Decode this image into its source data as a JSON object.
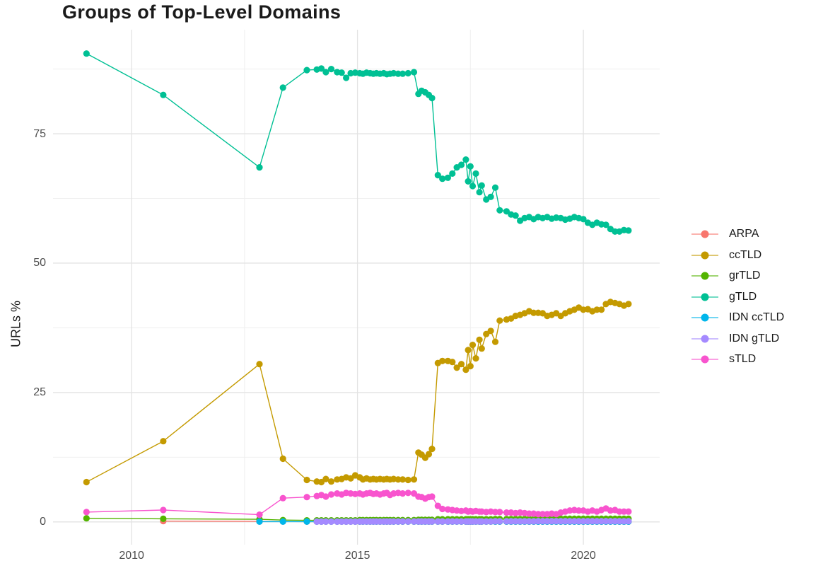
{
  "page": {
    "background": "#ffffff"
  },
  "chart_data": {
    "type": "line",
    "title": "Groups of Top-Level Domains",
    "xlabel": "",
    "ylabel": "URLs %",
    "legend_position": "right",
    "grid": true,
    "x_ticks": [
      2010,
      2015,
      2020
    ],
    "x_tick_labels": [
      "2010",
      "2015",
      "2020"
    ],
    "x_minor_ticks": [
      2012.5,
      2017.5
    ],
    "y_ticks": [
      0,
      25,
      50,
      75
    ],
    "y_tick_labels": [
      "0",
      "25",
      "50",
      "75"
    ],
    "y_minor_ticks": [
      12.5,
      37.5,
      62.5,
      87.5
    ],
    "xlim": [
      2008.26,
      2021.69
    ],
    "ylim": [
      -4.4,
      95.1
    ],
    "x": [
      2009.0,
      2010.7,
      2012.83,
      2013.35,
      2013.88,
      2014.1,
      2014.2,
      2014.3,
      2014.42,
      2014.55,
      2014.65,
      2014.75,
      2014.85,
      2014.95,
      2015.05,
      2015.12,
      2015.2,
      2015.28,
      2015.35,
      2015.42,
      2015.5,
      2015.58,
      2015.65,
      2015.72,
      2015.8,
      2015.9,
      2016.0,
      2016.12,
      2016.25,
      2016.35,
      2016.42,
      2016.5,
      2016.58,
      2016.65,
      2016.78,
      2016.88,
      2017.0,
      2017.1,
      2017.2,
      2017.3,
      2017.4,
      2017.45,
      2017.5,
      2017.55,
      2017.62,
      2017.7,
      2017.75,
      2017.85,
      2017.95,
      2018.05,
      2018.15,
      2018.3,
      2018.4,
      2018.5,
      2018.6,
      2018.7,
      2018.8,
      2018.9,
      2019.0,
      2019.1,
      2019.2,
      2019.3,
      2019.4,
      2019.5,
      2019.6,
      2019.7,
      2019.8,
      2019.9,
      2020.0,
      2020.1,
      2020.2,
      2020.3,
      2020.4,
      2020.5,
      2020.6,
      2020.7,
      2020.8,
      2020.9,
      2021.0
    ],
    "series": [
      {
        "name": "ARPA",
        "color": "#F8766D",
        "values": [
          null,
          0.15,
          0.1,
          0.08,
          0.05,
          0.05,
          0.05,
          0.05,
          0.05,
          0.05,
          0.05,
          0.05,
          0.05,
          0.05,
          0.05,
          0.05,
          0.05,
          0.05,
          0.05,
          0.05,
          0.05,
          0.05,
          0.05,
          0.05,
          0.05,
          0.05,
          0.05,
          0.05,
          0.05,
          0.05,
          0.05,
          0.05,
          0.05,
          0.05,
          0.05,
          0.05,
          0.05,
          0.05,
          0.05,
          0.05,
          0.05,
          0.05,
          0.05,
          0.05,
          0.05,
          0.05,
          0.05,
          0.05,
          0.05,
          0.05,
          0.05,
          0.05,
          0.05,
          0.05,
          0.05,
          0.05,
          0.05,
          0.05,
          0.05,
          0.05,
          0.05,
          0.05,
          0.05,
          0.05,
          0.05,
          0.05,
          0.05,
          0.05,
          0.05,
          0.05,
          0.05,
          0.05,
          0.05,
          0.05,
          0.05,
          0.05,
          0.05,
          0.05,
          0.05
        ]
      },
      {
        "name": "ccTLD",
        "color": "#C49A00",
        "values": [
          7.7,
          15.6,
          30.5,
          12.2,
          8.1,
          7.8,
          7.7,
          8.3,
          7.8,
          8.2,
          8.3,
          8.6,
          8.4,
          9.0,
          8.6,
          8.2,
          8.4,
          8.2,
          8.3,
          8.2,
          8.3,
          8.2,
          8.3,
          8.2,
          8.3,
          8.2,
          8.2,
          8.1,
          8.2,
          13.4,
          13.0,
          12.4,
          13.1,
          14.1,
          30.7,
          31.1,
          31.1,
          30.9,
          29.8,
          30.5,
          29.4,
          33.2,
          30.1,
          34.2,
          31.6,
          35.2,
          33.5,
          36.3,
          36.9,
          34.8,
          38.9,
          39.1,
          39.3,
          39.8,
          40.0,
          40.3,
          40.7,
          40.4,
          40.4,
          40.3,
          39.8,
          40.0,
          40.3,
          39.8,
          40.3,
          40.7,
          41.0,
          41.4,
          41.0,
          41.1,
          40.7,
          41.0,
          41.0,
          42.1,
          42.5,
          42.3,
          42.1,
          41.8,
          42.1
        ]
      },
      {
        "name": "grTLD",
        "color": "#53B400",
        "values": [
          0.7,
          0.6,
          0.5,
          0.35,
          0.3,
          0.3,
          0.3,
          0.3,
          0.3,
          0.3,
          0.3,
          0.3,
          0.3,
          0.3,
          0.35,
          0.35,
          0.35,
          0.35,
          0.35,
          0.35,
          0.35,
          0.35,
          0.35,
          0.35,
          0.35,
          0.35,
          0.35,
          0.35,
          0.35,
          0.4,
          0.4,
          0.4,
          0.4,
          0.4,
          0.5,
          0.5,
          0.5,
          0.5,
          0.5,
          0.5,
          0.5,
          0.5,
          0.5,
          0.5,
          0.5,
          0.5,
          0.5,
          0.5,
          0.5,
          0.55,
          0.55,
          0.55,
          0.55,
          0.55,
          0.55,
          0.55,
          0.55,
          0.55,
          0.6,
          0.6,
          0.6,
          0.6,
          0.6,
          0.6,
          0.6,
          0.6,
          0.6,
          0.6,
          0.6,
          0.6,
          0.6,
          0.6,
          0.6,
          0.6,
          0.6,
          0.6,
          0.6,
          0.6,
          0.6
        ]
      },
      {
        "name": "gTLD",
        "color": "#00C094",
        "values": [
          90.5,
          82.5,
          68.5,
          83.9,
          87.3,
          87.4,
          87.6,
          86.9,
          87.5,
          86.9,
          86.8,
          85.8,
          86.7,
          86.8,
          86.7,
          86.6,
          86.8,
          86.7,
          86.6,
          86.7,
          86.6,
          86.7,
          86.5,
          86.6,
          86.7,
          86.6,
          86.6,
          86.7,
          86.9,
          82.7,
          83.3,
          83.0,
          82.5,
          81.9,
          67.0,
          66.3,
          66.5,
          67.3,
          68.5,
          69.0,
          70.0,
          65.8,
          68.7,
          64.9,
          67.3,
          63.7,
          65.0,
          62.3,
          62.8,
          64.6,
          60.2,
          60.0,
          59.4,
          59.2,
          58.2,
          58.7,
          58.9,
          58.5,
          58.9,
          58.7,
          58.9,
          58.6,
          58.8,
          58.7,
          58.4,
          58.6,
          58.9,
          58.7,
          58.5,
          57.8,
          57.4,
          57.8,
          57.5,
          57.4,
          56.6,
          56.1,
          56.1,
          56.4,
          56.3
        ]
      },
      {
        "name": "IDN ccTLD",
        "color": "#00B6EB",
        "values": [
          null,
          null,
          0.05,
          0.05,
          0.05,
          0.05,
          0.05,
          0.05,
          0.05,
          0.05,
          0.05,
          0.05,
          0.05,
          0.05,
          0.05,
          0.05,
          0.05,
          0.05,
          0.05,
          0.05,
          0.05,
          0.05,
          0.05,
          0.05,
          0.05,
          0.05,
          0.05,
          0.05,
          0.05,
          0.05,
          0.05,
          0.05,
          0.05,
          0.05,
          0.05,
          0.05,
          0.05,
          0.05,
          0.05,
          0.05,
          0.05,
          0.05,
          0.05,
          0.05,
          0.05,
          0.05,
          0.05,
          0.05,
          0.05,
          0.05,
          0.05,
          0.05,
          0.05,
          0.05,
          0.05,
          0.05,
          0.05,
          0.05,
          0.05,
          0.05,
          0.05,
          0.05,
          0.05,
          0.05,
          0.05,
          0.05,
          0.05,
          0.05,
          0.05,
          0.05,
          0.05,
          0.05,
          0.05,
          0.05,
          0.05,
          0.05,
          0.05,
          0.05,
          0.05
        ]
      },
      {
        "name": "IDN gTLD",
        "color": "#A58AFF",
        "values": [
          null,
          null,
          null,
          null,
          null,
          0.05,
          0.05,
          0.05,
          0.05,
          0.05,
          0.05,
          0.05,
          0.05,
          0.05,
          0.08,
          0.08,
          0.08,
          0.08,
          0.08,
          0.08,
          0.08,
          0.08,
          0.08,
          0.08,
          0.08,
          0.08,
          0.1,
          0.1,
          0.1,
          0.1,
          0.1,
          0.1,
          0.1,
          0.1,
          0.1,
          0.1,
          0.1,
          0.1,
          0.1,
          0.1,
          0.1,
          0.1,
          0.1,
          0.1,
          0.1,
          0.1,
          0.1,
          0.1,
          0.1,
          0.12,
          0.12,
          0.12,
          0.12,
          0.12,
          0.12,
          0.12,
          0.12,
          0.12,
          0.15,
          0.15,
          0.15,
          0.15,
          0.15,
          0.15,
          0.15,
          0.15,
          0.15,
          0.15,
          0.15,
          0.15,
          0.15,
          0.15,
          0.15,
          0.15,
          0.15,
          0.15,
          0.15,
          0.15,
          0.15
        ]
      },
      {
        "name": "sTLD",
        "color": "#F854CE",
        "values": [
          1.9,
          2.3,
          1.4,
          4.6,
          4.8,
          5.0,
          5.2,
          4.9,
          5.3,
          5.5,
          5.3,
          5.6,
          5.5,
          5.4,
          5.5,
          5.3,
          5.5,
          5.6,
          5.4,
          5.5,
          5.3,
          5.5,
          5.6,
          5.2,
          5.5,
          5.6,
          5.5,
          5.6,
          5.5,
          4.9,
          4.8,
          4.5,
          4.8,
          4.9,
          3.1,
          2.5,
          2.4,
          2.3,
          2.2,
          2.1,
          2.2,
          2.0,
          2.1,
          2.0,
          2.1,
          2.0,
          2.0,
          1.9,
          2.0,
          1.9,
          1.9,
          1.8,
          1.8,
          1.7,
          1.8,
          1.7,
          1.6,
          1.6,
          1.5,
          1.5,
          1.5,
          1.6,
          1.5,
          1.8,
          2.0,
          2.2,
          2.3,
          2.2,
          2.2,
          2.0,
          2.2,
          2.0,
          2.3,
          2.6,
          2.2,
          2.3,
          2.0,
          2.0,
          2.0
        ]
      }
    ],
    "style": {
      "major_grid_color": "#e3e3e3",
      "minor_grid_color": "#efefef",
      "point_radius": 4.6,
      "line_width": 1.4,
      "title_color": "#1a1a1a",
      "tick_color": "#4d4d4d"
    }
  }
}
